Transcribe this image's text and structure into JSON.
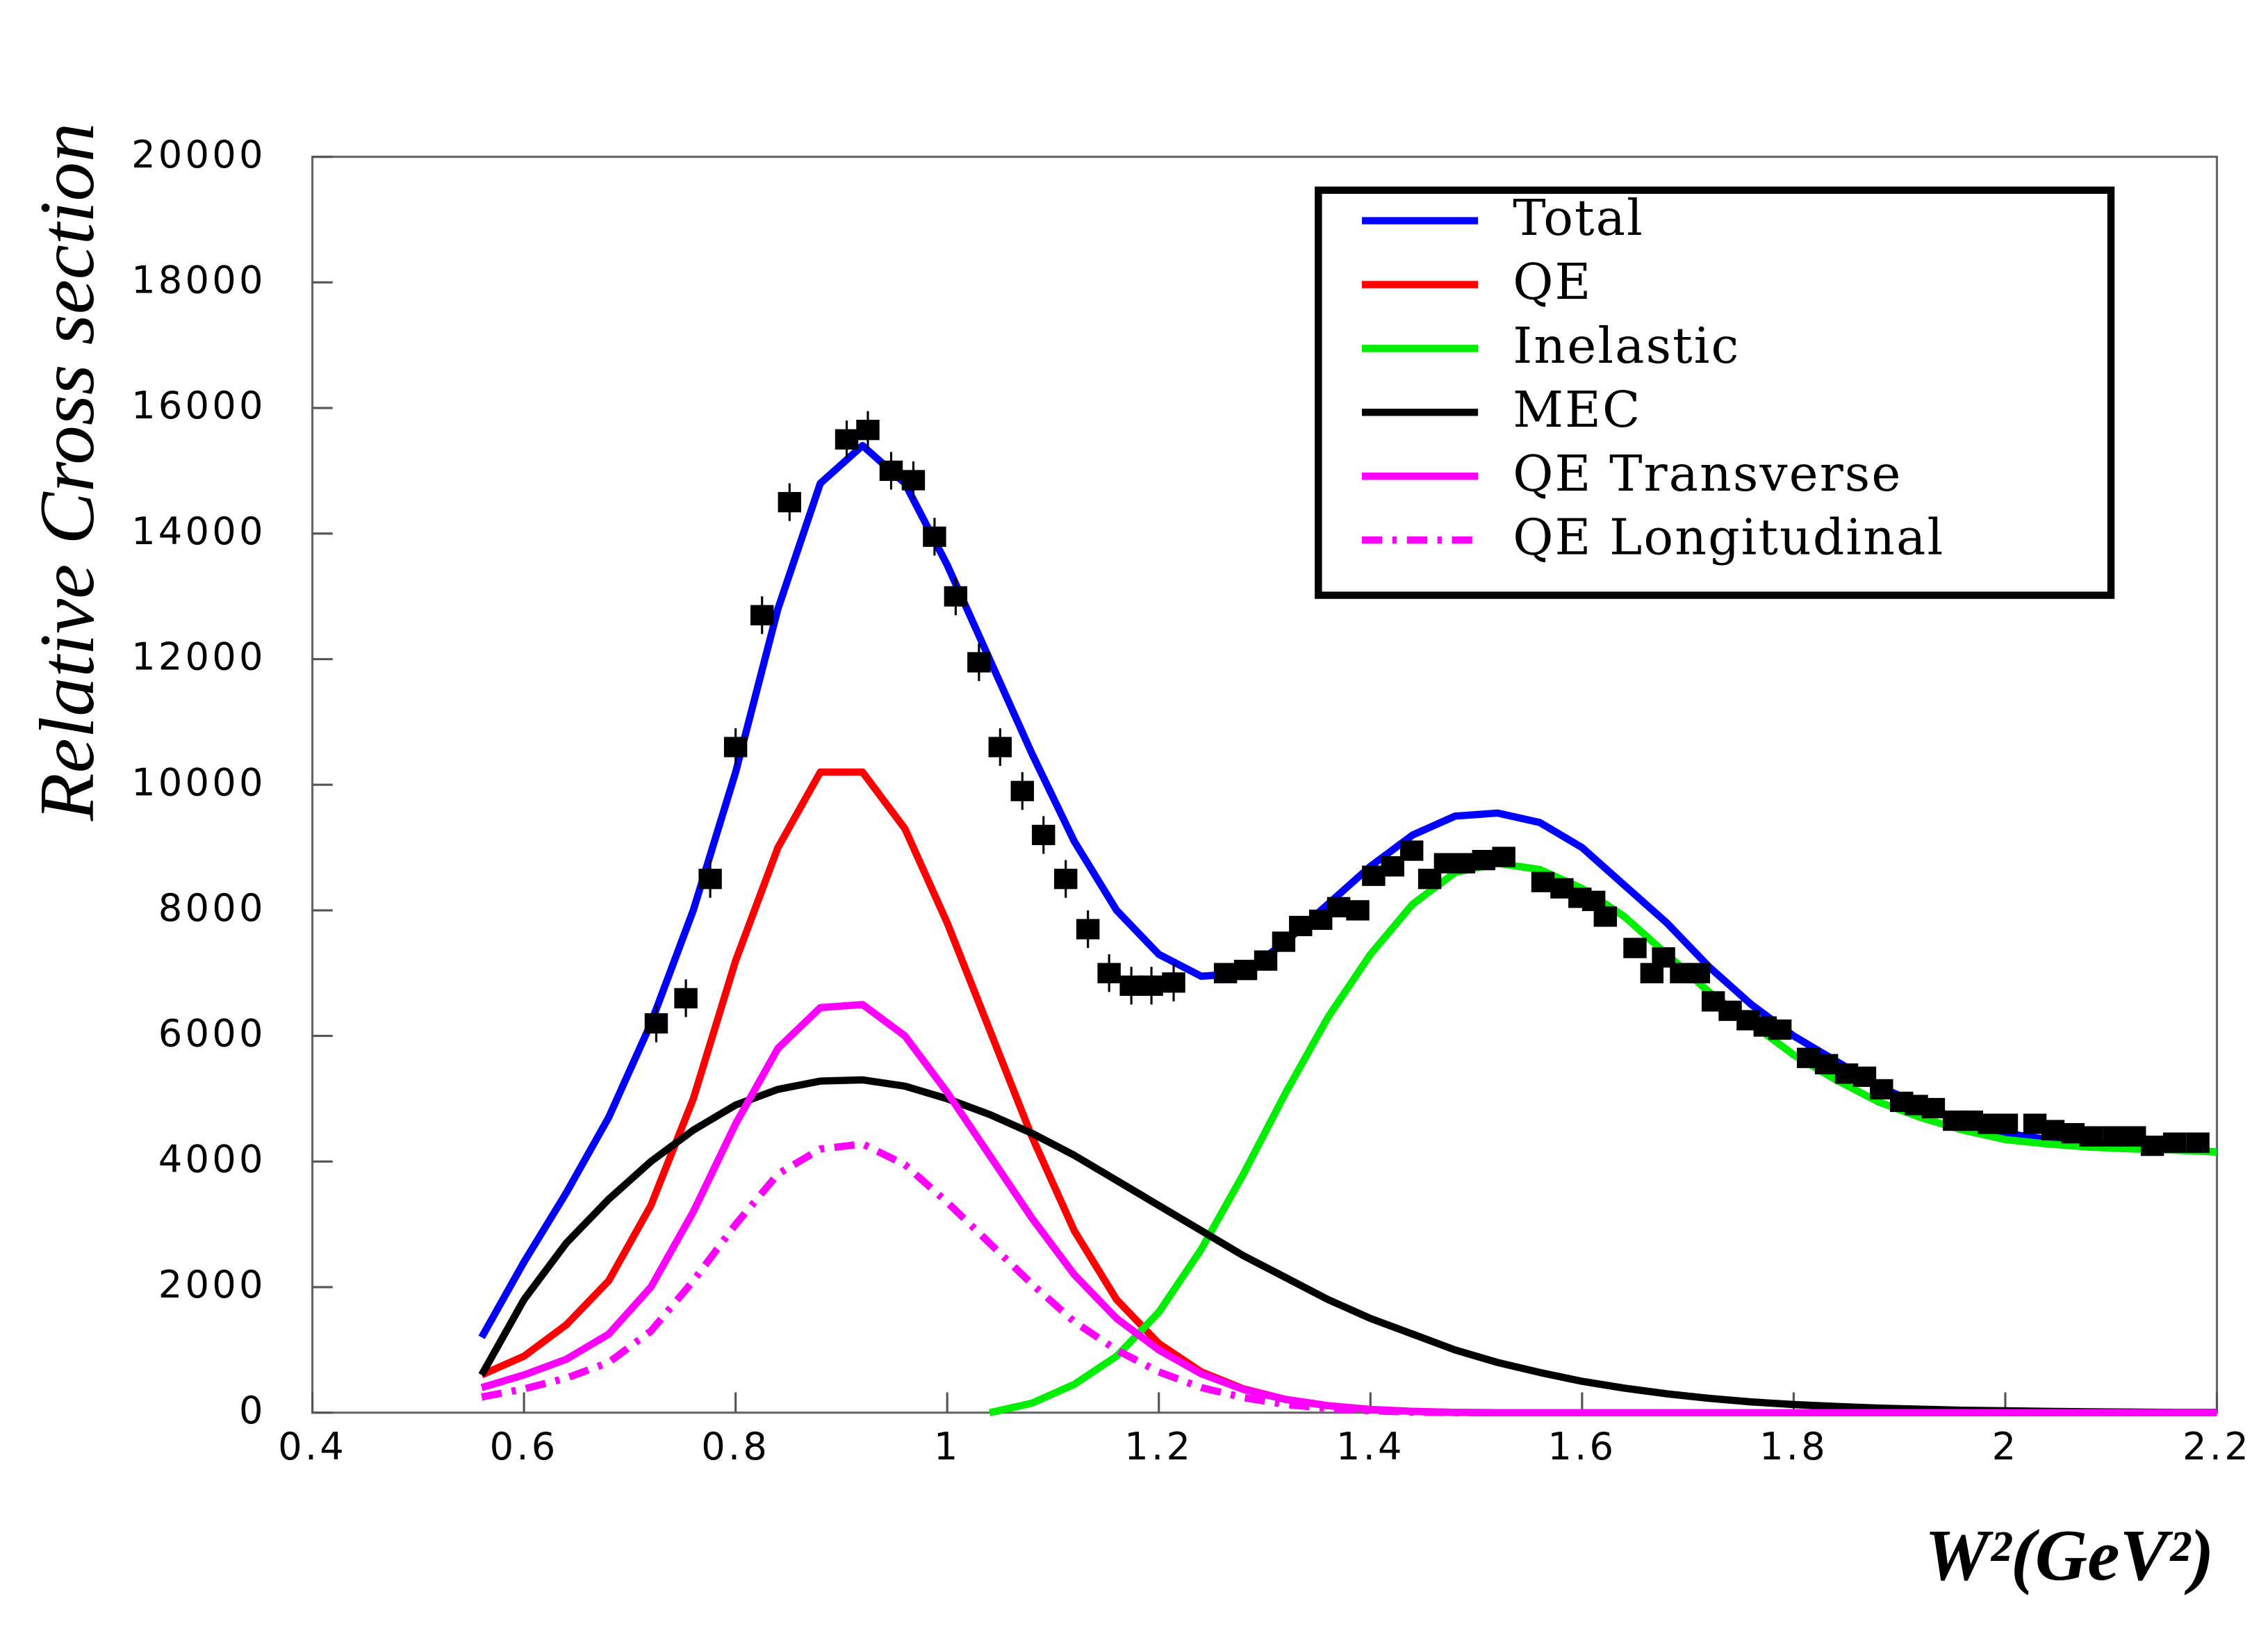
{
  "chart_data": {
    "type": "line",
    "y_label": "Relative Cross section",
    "x_label": "W²(GeV²)",
    "xlim": [
      0.4,
      2.2
    ],
    "xticks": [
      0.4,
      0.6,
      0.8,
      1,
      1.2,
      1.4,
      1.6,
      1.8,
      2,
      2.2
    ],
    "ylim": [
      0,
      20000
    ],
    "yticks": [
      0,
      2000,
      4000,
      6000,
      8000,
      10000,
      12000,
      14000,
      16000,
      18000,
      20000
    ],
    "grid": false,
    "legend": "upper right",
    "x": [
      0.56,
      0.6,
      0.64,
      0.68,
      0.72,
      0.76,
      0.8,
      0.84,
      0.88,
      0.92,
      0.96,
      1.0,
      1.04,
      1.08,
      1.12,
      1.16,
      1.2,
      1.24,
      1.28,
      1.32,
      1.36,
      1.4,
      1.44,
      1.48,
      1.52,
      1.56,
      1.6,
      1.64,
      1.68,
      1.72,
      1.76,
      1.8,
      1.84,
      1.88,
      1.92,
      1.96,
      2.0,
      2.04,
      2.08,
      2.12,
      2.16,
      2.2
    ],
    "series": [
      {
        "name": "Total",
        "color": "#0000ff",
        "style": "solid",
        "values": [
          1200,
          2400,
          3500,
          4700,
          6200,
          8000,
          10200,
          12800,
          14800,
          15400,
          14800,
          13500,
          12000,
          10500,
          9100,
          8000,
          7300,
          6950,
          7000,
          7500,
          8100,
          8700,
          9200,
          9500,
          9550,
          9400,
          9000,
          8400,
          7800,
          7100,
          6500,
          6000,
          5600,
          5200,
          4900,
          4650,
          4450,
          4350,
          4280,
          4230,
          4200,
          4150
        ]
      },
      {
        "name": "QE",
        "color": "#ff0000",
        "style": "solid",
        "values": [
          600,
          900,
          1400,
          2100,
          3300,
          5000,
          7200,
          9000,
          10200,
          10200,
          9300,
          7800,
          6100,
          4400,
          2900,
          1800,
          1100,
          650,
          380,
          210,
          110,
          50,
          20,
          5,
          0,
          0,
          0,
          0,
          0,
          0,
          0,
          0,
          0,
          0,
          0,
          0,
          0,
          0,
          0,
          0,
          0,
          0
        ]
      },
      {
        "name": "Inelastic",
        "color": "#00ee00",
        "style": "solid",
        "values": [
          null,
          null,
          null,
          null,
          null,
          null,
          null,
          null,
          null,
          null,
          null,
          null,
          0,
          150,
          450,
          900,
          1600,
          2600,
          3800,
          5100,
          6300,
          7300,
          8100,
          8600,
          8750,
          8650,
          8350,
          7900,
          7300,
          6700,
          6200,
          5700,
          5300,
          4950,
          4700,
          4500,
          4350,
          4280,
          4230,
          4200,
          4180,
          4150
        ]
      },
      {
        "name": "MEC",
        "color": "#000000",
        "style": "solid",
        "values": [
          600,
          1800,
          2700,
          3400,
          4000,
          4500,
          4900,
          5150,
          5280,
          5300,
          5200,
          5000,
          4750,
          4450,
          4100,
          3700,
          3300,
          2900,
          2500,
          2150,
          1800,
          1500,
          1250,
          1000,
          800,
          640,
          500,
          390,
          300,
          230,
          170,
          130,
          100,
          75,
          55,
          40,
          30,
          20,
          15,
          10,
          5,
          5
        ]
      },
      {
        "name": "QE Transverse",
        "color": "#ff00ff",
        "style": "solid",
        "values": [
          400,
          600,
          850,
          1250,
          2000,
          3200,
          4600,
          5800,
          6450,
          6500,
          6000,
          5100,
          4100,
          3100,
          2200,
          1500,
          1000,
          620,
          370,
          210,
          110,
          50,
          20,
          5,
          0,
          0,
          0,
          0,
          0,
          0,
          0,
          0,
          0,
          0,
          0,
          0,
          0,
          0,
          0,
          0,
          0,
          0
        ]
      },
      {
        "name": "QE Longitudinal",
        "color": "#ff00ff",
        "style": "dashdot",
        "values": [
          250,
          380,
          550,
          800,
          1300,
          2100,
          3000,
          3800,
          4200,
          4280,
          3950,
          3350,
          2700,
          2050,
          1450,
          1000,
          650,
          400,
          240,
          130,
          70,
          30,
          10,
          0,
          0,
          0,
          0,
          0,
          0,
          0,
          0,
          0,
          0,
          0,
          0,
          0,
          0,
          0,
          0,
          0,
          0,
          0
        ]
      }
    ],
    "points": {
      "color": "#000000",
      "x": [
        0.725,
        0.753,
        0.776,
        0.8,
        0.825,
        0.851,
        0.905,
        0.925,
        0.947,
        0.968,
        0.988,
        1.008,
        1.03,
        1.05,
        1.071,
        1.091,
        1.112,
        1.133,
        1.153,
        1.174,
        1.193,
        1.214,
        1.263,
        1.282,
        1.301,
        1.318,
        1.334,
        1.353,
        1.37,
        1.388,
        1.403,
        1.421,
        1.439,
        1.456,
        1.471,
        1.488,
        1.507,
        1.526,
        1.563,
        1.581,
        1.598,
        1.611,
        1.622,
        1.65,
        1.666,
        1.677,
        1.694,
        1.71,
        1.724,
        1.74,
        1.757,
        1.773,
        1.787,
        1.814,
        1.831,
        1.85,
        1.867,
        1.883,
        1.902,
        1.916,
        1.932,
        1.952,
        1.968,
        1.985,
        2.001,
        2.028,
        2.045,
        2.064,
        2.081,
        2.103,
        2.122,
        2.139,
        2.16,
        2.182
      ],
      "values": [
        6200,
        6600,
        8500,
        10600,
        12700,
        14500,
        15500,
        15650,
        15000,
        14850,
        13950,
        13000,
        11950,
        10600,
        9900,
        9200,
        8500,
        7700,
        7000,
        6800,
        6800,
        6850,
        7000,
        7050,
        7200,
        7500,
        7750,
        7850,
        8050,
        8000,
        8550,
        8700,
        8950,
        8500,
        8750,
        8750,
        8800,
        8850,
        8450,
        8350,
        8200,
        8150,
        7900,
        7400,
        7000,
        7250,
        7000,
        7000,
        6550,
        6400,
        6250,
        6150,
        6100,
        5650,
        5550,
        5400,
        5350,
        5150,
        4950,
        4900,
        4850,
        4650,
        4650,
        4600,
        4600,
        4600,
        4500,
        4450,
        4400,
        4400,
        4400,
        4250,
        4300,
        4300
      ],
      "errors": [
        300,
        300,
        300,
        300,
        300,
        300,
        300,
        300,
        300,
        300,
        300,
        300,
        300,
        300,
        300,
        300,
        300,
        300,
        300,
        300,
        300,
        300,
        150,
        150,
        150,
        150,
        150,
        150,
        150,
        150,
        150,
        150,
        150,
        150,
        150,
        150,
        150,
        150,
        150,
        150,
        150,
        150,
        150,
        150,
        150,
        150,
        150,
        150,
        150,
        150,
        150,
        150,
        150,
        150,
        150,
        150,
        150,
        150,
        150,
        150,
        150,
        150,
        150,
        150,
        150,
        150,
        150,
        150,
        150,
        150,
        150,
        150,
        150,
        150
      ]
    }
  }
}
